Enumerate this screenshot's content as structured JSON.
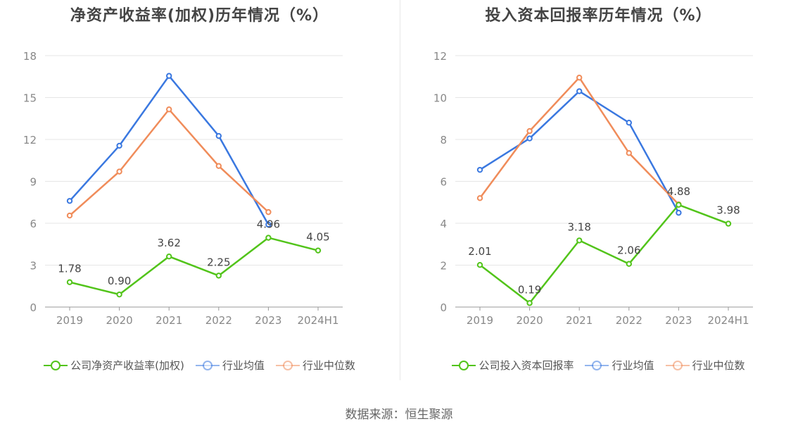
{
  "source": "数据来源：恒生聚源",
  "chart_data": [
    {
      "type": "line",
      "title": "净资产收益率(加权)历年情况（%）",
      "categories": [
        "2019",
        "2020",
        "2021",
        "2022",
        "2023",
        "2024H1"
      ],
      "ylim": [
        0,
        18
      ],
      "yticks": [
        0,
        3,
        6,
        9,
        12,
        15,
        18
      ],
      "grid": true,
      "legend_position": "bottom",
      "series": [
        {
          "name": "公司净资产收益率(加权)",
          "color": "#52c41a",
          "values": [
            1.78,
            0.9,
            3.62,
            2.25,
            4.96,
            4.05
          ],
          "labels": [
            "1.78",
            "0.90",
            "3.62",
            "2.25",
            "4.96",
            "4.05"
          ]
        },
        {
          "name": "行业均值",
          "color": "#3a78e0",
          "values": [
            7.6,
            11.55,
            16.55,
            12.25,
            5.9,
            null
          ]
        },
        {
          "name": "行业中位数",
          "color": "#f08c5a",
          "values": [
            6.55,
            9.7,
            14.15,
            10.1,
            6.8,
            null
          ]
        }
      ]
    },
    {
      "type": "line",
      "title": "投入资本回报率历年情况（%）",
      "categories": [
        "2019",
        "2020",
        "2021",
        "2022",
        "2023",
        "2024H1"
      ],
      "ylim": [
        0,
        12
      ],
      "yticks": [
        0,
        2,
        4,
        6,
        8,
        10,
        12
      ],
      "grid": true,
      "legend_position": "bottom",
      "series": [
        {
          "name": "公司投入资本回报率",
          "color": "#52c41a",
          "values": [
            2.01,
            0.19,
            3.18,
            2.06,
            4.88,
            3.98
          ],
          "labels": [
            "2.01",
            "0.19",
            "3.18",
            "2.06",
            "4.88",
            "3.98"
          ]
        },
        {
          "name": "行业均值",
          "color": "#3a78e0",
          "values": [
            6.55,
            8.05,
            10.3,
            8.8,
            4.5,
            null
          ]
        },
        {
          "name": "行业中位数",
          "color": "#f08c5a",
          "values": [
            5.2,
            8.4,
            10.95,
            7.35,
            4.9,
            null
          ]
        }
      ]
    }
  ]
}
